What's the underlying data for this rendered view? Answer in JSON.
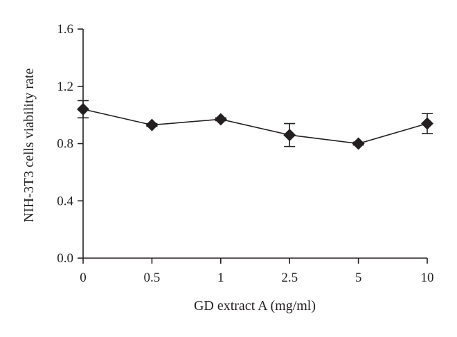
{
  "chart_data": {
    "type": "line",
    "title": "",
    "xlabel": "GD extract A (mg/ml)",
    "ylabel": "NIH-3T3 cells viability rate",
    "categories": [
      "0",
      "0.5",
      "1",
      "2.5",
      "5",
      "10"
    ],
    "series": [
      {
        "values": [
          1.04,
          0.93,
          0.97,
          0.86,
          0.8,
          0.94
        ],
        "errors": [
          0.06,
          0.01,
          0.01,
          0.08,
          0.01,
          0.07
        ]
      }
    ],
    "ylim": [
      0,
      1.6
    ],
    "yticks": [
      "0.0",
      "0.4",
      "0.8",
      "1.2",
      "1.6"
    ],
    "marker": "diamond",
    "grid": false,
    "colors": {
      "line": "#231f20",
      "marker": "#231f20"
    }
  }
}
